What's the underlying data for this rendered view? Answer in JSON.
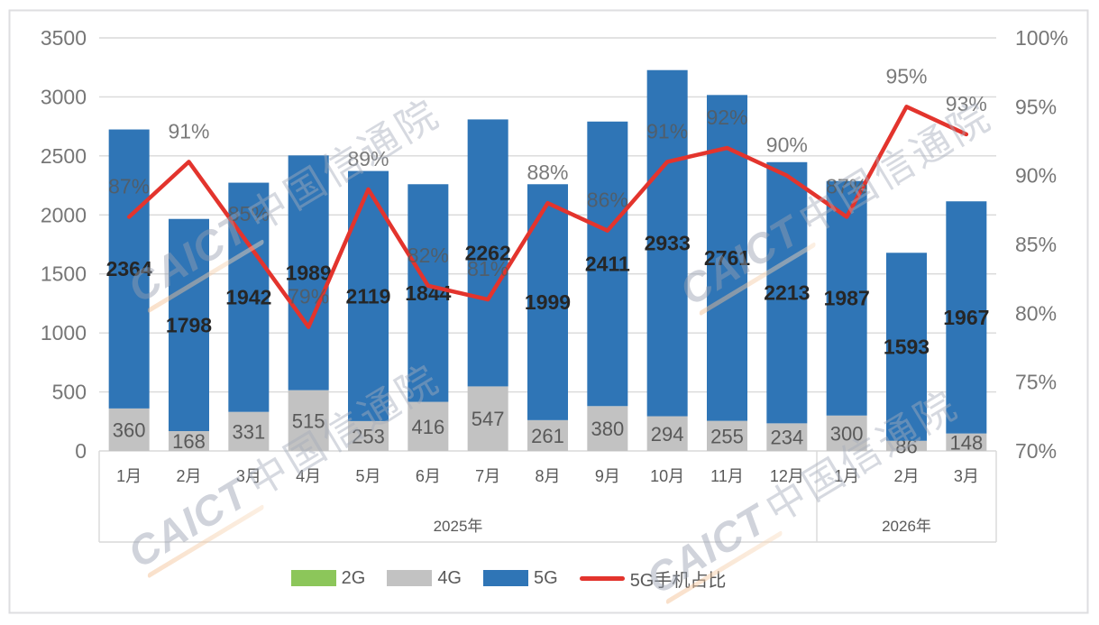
{
  "chart_data": {
    "type": "bar",
    "subtype": "stacked-columns-with-line",
    "title": "",
    "categories": [
      "1月",
      "2月",
      "3月",
      "4月",
      "5月",
      "6月",
      "7月",
      "8月",
      "9月",
      "10月",
      "11月",
      "12月",
      "1月",
      "2月",
      "3月"
    ],
    "year_groups": [
      {
        "label": "2025年",
        "start": 0,
        "span": 12
      },
      {
        "label": "2026年",
        "start": 12,
        "span": 3
      }
    ],
    "series": [
      {
        "name": "2G",
        "type": "bar",
        "color": "#8CC65A",
        "show_labels": false,
        "values": [
          0,
          0,
          0,
          0,
          0,
          0,
          0,
          0,
          0,
          0,
          0,
          0,
          0,
          0,
          0
        ]
      },
      {
        "name": "4G",
        "type": "bar",
        "color": "#C2C2C2",
        "label_color": "#595959",
        "show_labels": true,
        "values": [
          360,
          168,
          331,
          515,
          253,
          416,
          547,
          261,
          380,
          294,
          255,
          234,
          300,
          86,
          148
        ]
      },
      {
        "name": "5G",
        "type": "bar",
        "color": "#2F75B6",
        "label_color": "#262626",
        "show_labels": true,
        "values": [
          2364,
          1798,
          1942,
          1989,
          2119,
          1844,
          2262,
          1999,
          2411,
          2933,
          2761,
          2213,
          1987,
          1593,
          1967
        ]
      },
      {
        "name": "5G手机占比",
        "type": "line",
        "color": "#E3342D",
        "label_color": "#595959",
        "suffix": "%",
        "show_labels": true,
        "values": [
          87,
          91,
          85,
          79,
          89,
          82,
          81,
          88,
          86,
          91,
          92,
          90,
          87,
          95,
          93
        ]
      }
    ],
    "left_axis": {
      "min": 0,
      "max": 3500,
      "step": 500,
      "suffix": ""
    },
    "right_axis": {
      "min": 70,
      "max": 100,
      "step": 5,
      "suffix": "%"
    },
    "grid": true,
    "legend_position": "bottom",
    "watermark_text": "CAICT中国信通院",
    "colors": {
      "gridline": "#D9D9D9",
      "axis_tick_text": "#767676",
      "category_text": "#595959",
      "frame_border": "#DEDEE0"
    }
  }
}
